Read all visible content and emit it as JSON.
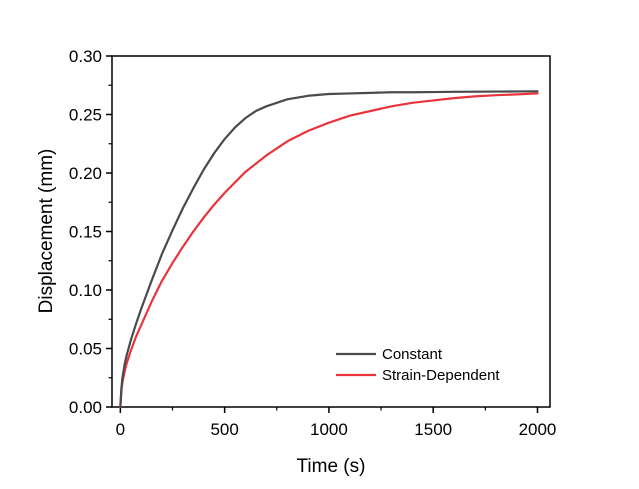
{
  "chart_data": {
    "type": "line",
    "xlabel": "Time (s)",
    "ylabel": "Displacement (mm)",
    "xlim": [
      -40,
      2060
    ],
    "ylim": [
      0.0,
      0.3
    ],
    "xticks": [
      0,
      500,
      1000,
      1500,
      2000
    ],
    "yticks": [
      0.0,
      0.05,
      0.1,
      0.15,
      0.2,
      0.25,
      0.3
    ],
    "xtick_labels": [
      "0",
      "500",
      "1000",
      "1500",
      "2000"
    ],
    "ytick_labels": [
      "0.00",
      "0.05",
      "0.10",
      "0.15",
      "0.20",
      "0.25",
      "0.30"
    ],
    "grid": false,
    "legend_position": "bottom-right",
    "series": [
      {
        "name": "Constant",
        "color": "#4a4a4a",
        "x": [
          0,
          5,
          10,
          20,
          30,
          50,
          75,
          100,
          150,
          200,
          250,
          300,
          350,
          400,
          450,
          500,
          550,
          600,
          650,
          700,
          800,
          900,
          1000,
          1100,
          1200,
          1300,
          1400,
          1500,
          1600,
          1700,
          1800,
          1900,
          2000
        ],
        "y": [
          0.0,
          0.016,
          0.025,
          0.036,
          0.044,
          0.057,
          0.071,
          0.084,
          0.108,
          0.131,
          0.151,
          0.17,
          0.187,
          0.203,
          0.217,
          0.229,
          0.239,
          0.247,
          0.253,
          0.257,
          0.263,
          0.266,
          0.2675,
          0.268,
          0.2685,
          0.269,
          0.269,
          0.2692,
          0.2694,
          0.2695,
          0.2696,
          0.2697,
          0.2698
        ]
      },
      {
        "name": "Strain-Dependent",
        "color": "#e8353b",
        "x": [
          0,
          5,
          10,
          20,
          30,
          50,
          75,
          100,
          150,
          200,
          250,
          300,
          350,
          400,
          450,
          500,
          600,
          700,
          800,
          900,
          1000,
          1100,
          1200,
          1300,
          1400,
          1500,
          1600,
          1700,
          1800,
          1900,
          2000
        ],
        "y": [
          0.0,
          0.014,
          0.021,
          0.03,
          0.037,
          0.048,
          0.06,
          0.07,
          0.09,
          0.108,
          0.123,
          0.137,
          0.15,
          0.162,
          0.173,
          0.183,
          0.201,
          0.215,
          0.227,
          0.236,
          0.243,
          0.249,
          0.253,
          0.257,
          0.26,
          0.262,
          0.264,
          0.2655,
          0.2665,
          0.2672,
          0.268
        ]
      }
    ]
  }
}
